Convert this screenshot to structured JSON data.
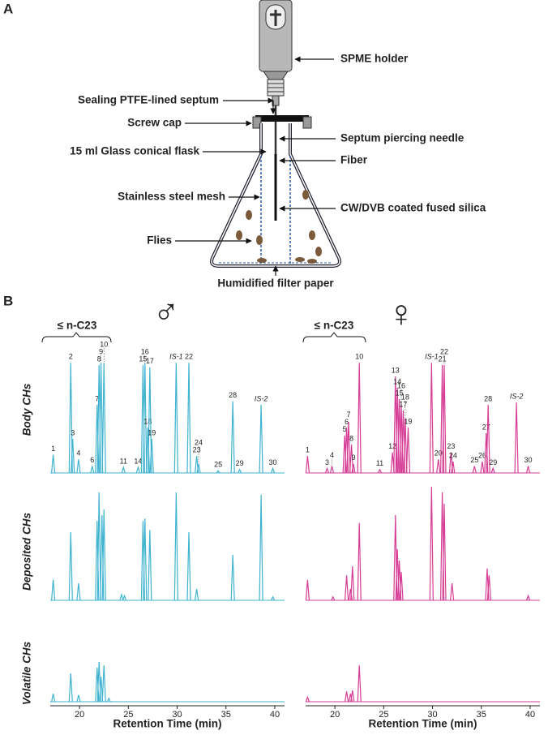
{
  "panel_a": {
    "label": "A",
    "labels": [
      "SPME holder",
      "Sealing PTFE-lined septum",
      "Screw cap",
      "Septum piercing needle",
      "15 ml Glass conical flask",
      "Fiber",
      "Stainless steel mesh",
      "CW/DVB coated fused silica",
      "Flies",
      "Humidified filter paper"
    ]
  },
  "panel_b": {
    "label": "B",
    "x_label": "Retention Time (min)",
    "xlim": [
      17,
      41
    ],
    "xticks": [
      20,
      25,
      30,
      35,
      40
    ],
    "ylim": [
      0,
      100
    ],
    "row_labels": [
      "Body CHs",
      "Deposited CHs",
      "Volatile CHs"
    ],
    "symbols": [
      "♂",
      "♀"
    ],
    "bracket_label": "≤ n-C23"
  },
  "chart_data": [
    {
      "type": "chromatogram",
      "color": "#3fb3cf",
      "peaks": [
        {
          "label": "1",
          "x": 17.3,
          "y": 16
        },
        {
          "label": "2",
          "x": 19.1,
          "y": 97
        },
        {
          "label": "3",
          "x": 19.3,
          "y": 30
        },
        {
          "label": "4",
          "x": 19.9,
          "y": 12
        },
        {
          "label": "6",
          "x": 21.3,
          "y": 6
        },
        {
          "label": "7",
          "x": 21.8,
          "y": 60
        },
        {
          "label": "8",
          "x": 22.0,
          "y": 95
        },
        {
          "label": "9",
          "x": 22.2,
          "y": 97
        },
        {
          "label": "10",
          "x": 22.5,
          "y": 97
        },
        {
          "label": "11",
          "x": 24.5,
          "y": 5
        },
        {
          "label": "14",
          "x": 26.0,
          "y": 5
        },
        {
          "label": "15",
          "x": 26.5,
          "y": 95
        },
        {
          "label": "16",
          "x": 26.7,
          "y": 97
        },
        {
          "label": "18",
          "x": 27.0,
          "y": 40
        },
        {
          "label": "17",
          "x": 27.2,
          "y": 93
        },
        {
          "label": "19",
          "x": 27.4,
          "y": 30
        },
        {
          "label": "IS-1",
          "x": 29.9,
          "y": 97
        },
        {
          "label": "22",
          "x": 31.2,
          "y": 97
        },
        {
          "label": "23",
          "x": 32.0,
          "y": 15
        },
        {
          "label": "24",
          "x": 32.2,
          "y": 8
        },
        {
          "label": "25",
          "x": 34.2,
          "y": 2
        },
        {
          "label": "28",
          "x": 35.7,
          "y": 63
        },
        {
          "label": "29",
          "x": 36.4,
          "y": 3
        },
        {
          "label": "IS-2",
          "x": 38.6,
          "y": 60
        },
        {
          "label": "30",
          "x": 39.8,
          "y": 4
        }
      ]
    },
    {
      "type": "chromatogram",
      "color": "#d63c96",
      "peaks": [
        {
          "label": "1",
          "x": 17.2,
          "y": 15
        },
        {
          "label": "3",
          "x": 19.2,
          "y": 4
        },
        {
          "label": "4",
          "x": 19.7,
          "y": 6
        },
        {
          "label": "5",
          "x": 21.0,
          "y": 33
        },
        {
          "label": "6",
          "x": 21.2,
          "y": 40
        },
        {
          "label": "7",
          "x": 21.4,
          "y": 45
        },
        {
          "label": "8",
          "x": 21.7,
          "y": 25
        },
        {
          "label": "9",
          "x": 21.9,
          "y": 8
        },
        {
          "label": "10",
          "x": 22.5,
          "y": 97
        },
        {
          "label": "11",
          "x": 24.6,
          "y": 3
        },
        {
          "label": "12",
          "x": 25.9,
          "y": 18
        },
        {
          "label": "13",
          "x": 26.2,
          "y": 85
        },
        {
          "label": "14",
          "x": 26.4,
          "y": 75
        },
        {
          "label": "15",
          "x": 26.6,
          "y": 65
        },
        {
          "label": "16",
          "x": 26.8,
          "y": 60
        },
        {
          "label": "17",
          "x": 27.0,
          "y": 55
        },
        {
          "label": "18",
          "x": 27.2,
          "y": 48
        },
        {
          "label": "19",
          "x": 27.5,
          "y": 40
        },
        {
          "label": "IS-1",
          "x": 29.9,
          "y": 97
        },
        {
          "label": "20",
          "x": 30.6,
          "y": 12
        },
        {
          "label": "21",
          "x": 31.0,
          "y": 95
        },
        {
          "label": "22",
          "x": 31.2,
          "y": 95
        },
        {
          "label": "23",
          "x": 31.9,
          "y": 18
        },
        {
          "label": "24",
          "x": 32.1,
          "y": 10
        },
        {
          "label": "25",
          "x": 34.3,
          "y": 6
        },
        {
          "label": "26",
          "x": 35.1,
          "y": 10
        },
        {
          "label": "27",
          "x": 35.5,
          "y": 35
        },
        {
          "label": "28",
          "x": 35.7,
          "y": 60
        },
        {
          "label": "29",
          "x": 36.2,
          "y": 4
        },
        {
          "label": "IS-2",
          "x": 38.6,
          "y": 62
        },
        {
          "label": "30",
          "x": 39.8,
          "y": 6
        }
      ]
    },
    {
      "type": "chromatogram",
      "color": "#3fb3cf",
      "peaks": [
        {
          "x": 17.3,
          "y": 18
        },
        {
          "x": 19.1,
          "y": 60
        },
        {
          "x": 19.9,
          "y": 15
        },
        {
          "x": 21.8,
          "y": 70
        },
        {
          "x": 22.0,
          "y": 95
        },
        {
          "x": 22.3,
          "y": 75
        },
        {
          "x": 22.5,
          "y": 80
        },
        {
          "x": 24.3,
          "y": 5
        },
        {
          "x": 24.6,
          "y": 4
        },
        {
          "x": 26.5,
          "y": 70
        },
        {
          "x": 26.7,
          "y": 72
        },
        {
          "x": 27.2,
          "y": 62
        },
        {
          "x": 29.9,
          "y": 95
        },
        {
          "x": 31.2,
          "y": 60
        },
        {
          "x": 32.0,
          "y": 10
        },
        {
          "x": 35.7,
          "y": 40
        },
        {
          "x": 38.6,
          "y": 93
        },
        {
          "x": 39.8,
          "y": 3
        }
      ]
    },
    {
      "type": "chromatogram",
      "color": "#d63c96",
      "peaks": [
        {
          "x": 17.2,
          "y": 18
        },
        {
          "x": 19.8,
          "y": 3
        },
        {
          "x": 21.2,
          "y": 22
        },
        {
          "x": 21.6,
          "y": 10
        },
        {
          "x": 21.8,
          "y": 30
        },
        {
          "x": 22.5,
          "y": 68
        },
        {
          "x": 26.2,
          "y": 75
        },
        {
          "x": 26.4,
          "y": 45
        },
        {
          "x": 26.6,
          "y": 35
        },
        {
          "x": 26.8,
          "y": 25
        },
        {
          "x": 29.9,
          "y": 100
        },
        {
          "x": 31.0,
          "y": 95
        },
        {
          "x": 31.2,
          "y": 85
        },
        {
          "x": 32.0,
          "y": 15
        },
        {
          "x": 35.6,
          "y": 28
        },
        {
          "x": 35.8,
          "y": 22
        },
        {
          "x": 39.8,
          "y": 4
        }
      ]
    },
    {
      "type": "chromatogram",
      "color": "#3fb3cf",
      "peaks": [
        {
          "x": 17.3,
          "y": 7
        },
        {
          "x": 19.1,
          "y": 25
        },
        {
          "x": 19.9,
          "y": 6
        },
        {
          "x": 21.8,
          "y": 30
        },
        {
          "x": 22.0,
          "y": 35
        },
        {
          "x": 22.2,
          "y": 22
        },
        {
          "x": 22.5,
          "y": 32
        },
        {
          "x": 23.0,
          "y": 3
        }
      ]
    },
    {
      "type": "chromatogram",
      "color": "#d63c96",
      "peaks": [
        {
          "x": 17.2,
          "y": 4
        },
        {
          "x": 21.2,
          "y": 9
        },
        {
          "x": 21.6,
          "y": 7
        },
        {
          "x": 21.8,
          "y": 10
        },
        {
          "x": 22.5,
          "y": 32
        }
      ]
    }
  ]
}
